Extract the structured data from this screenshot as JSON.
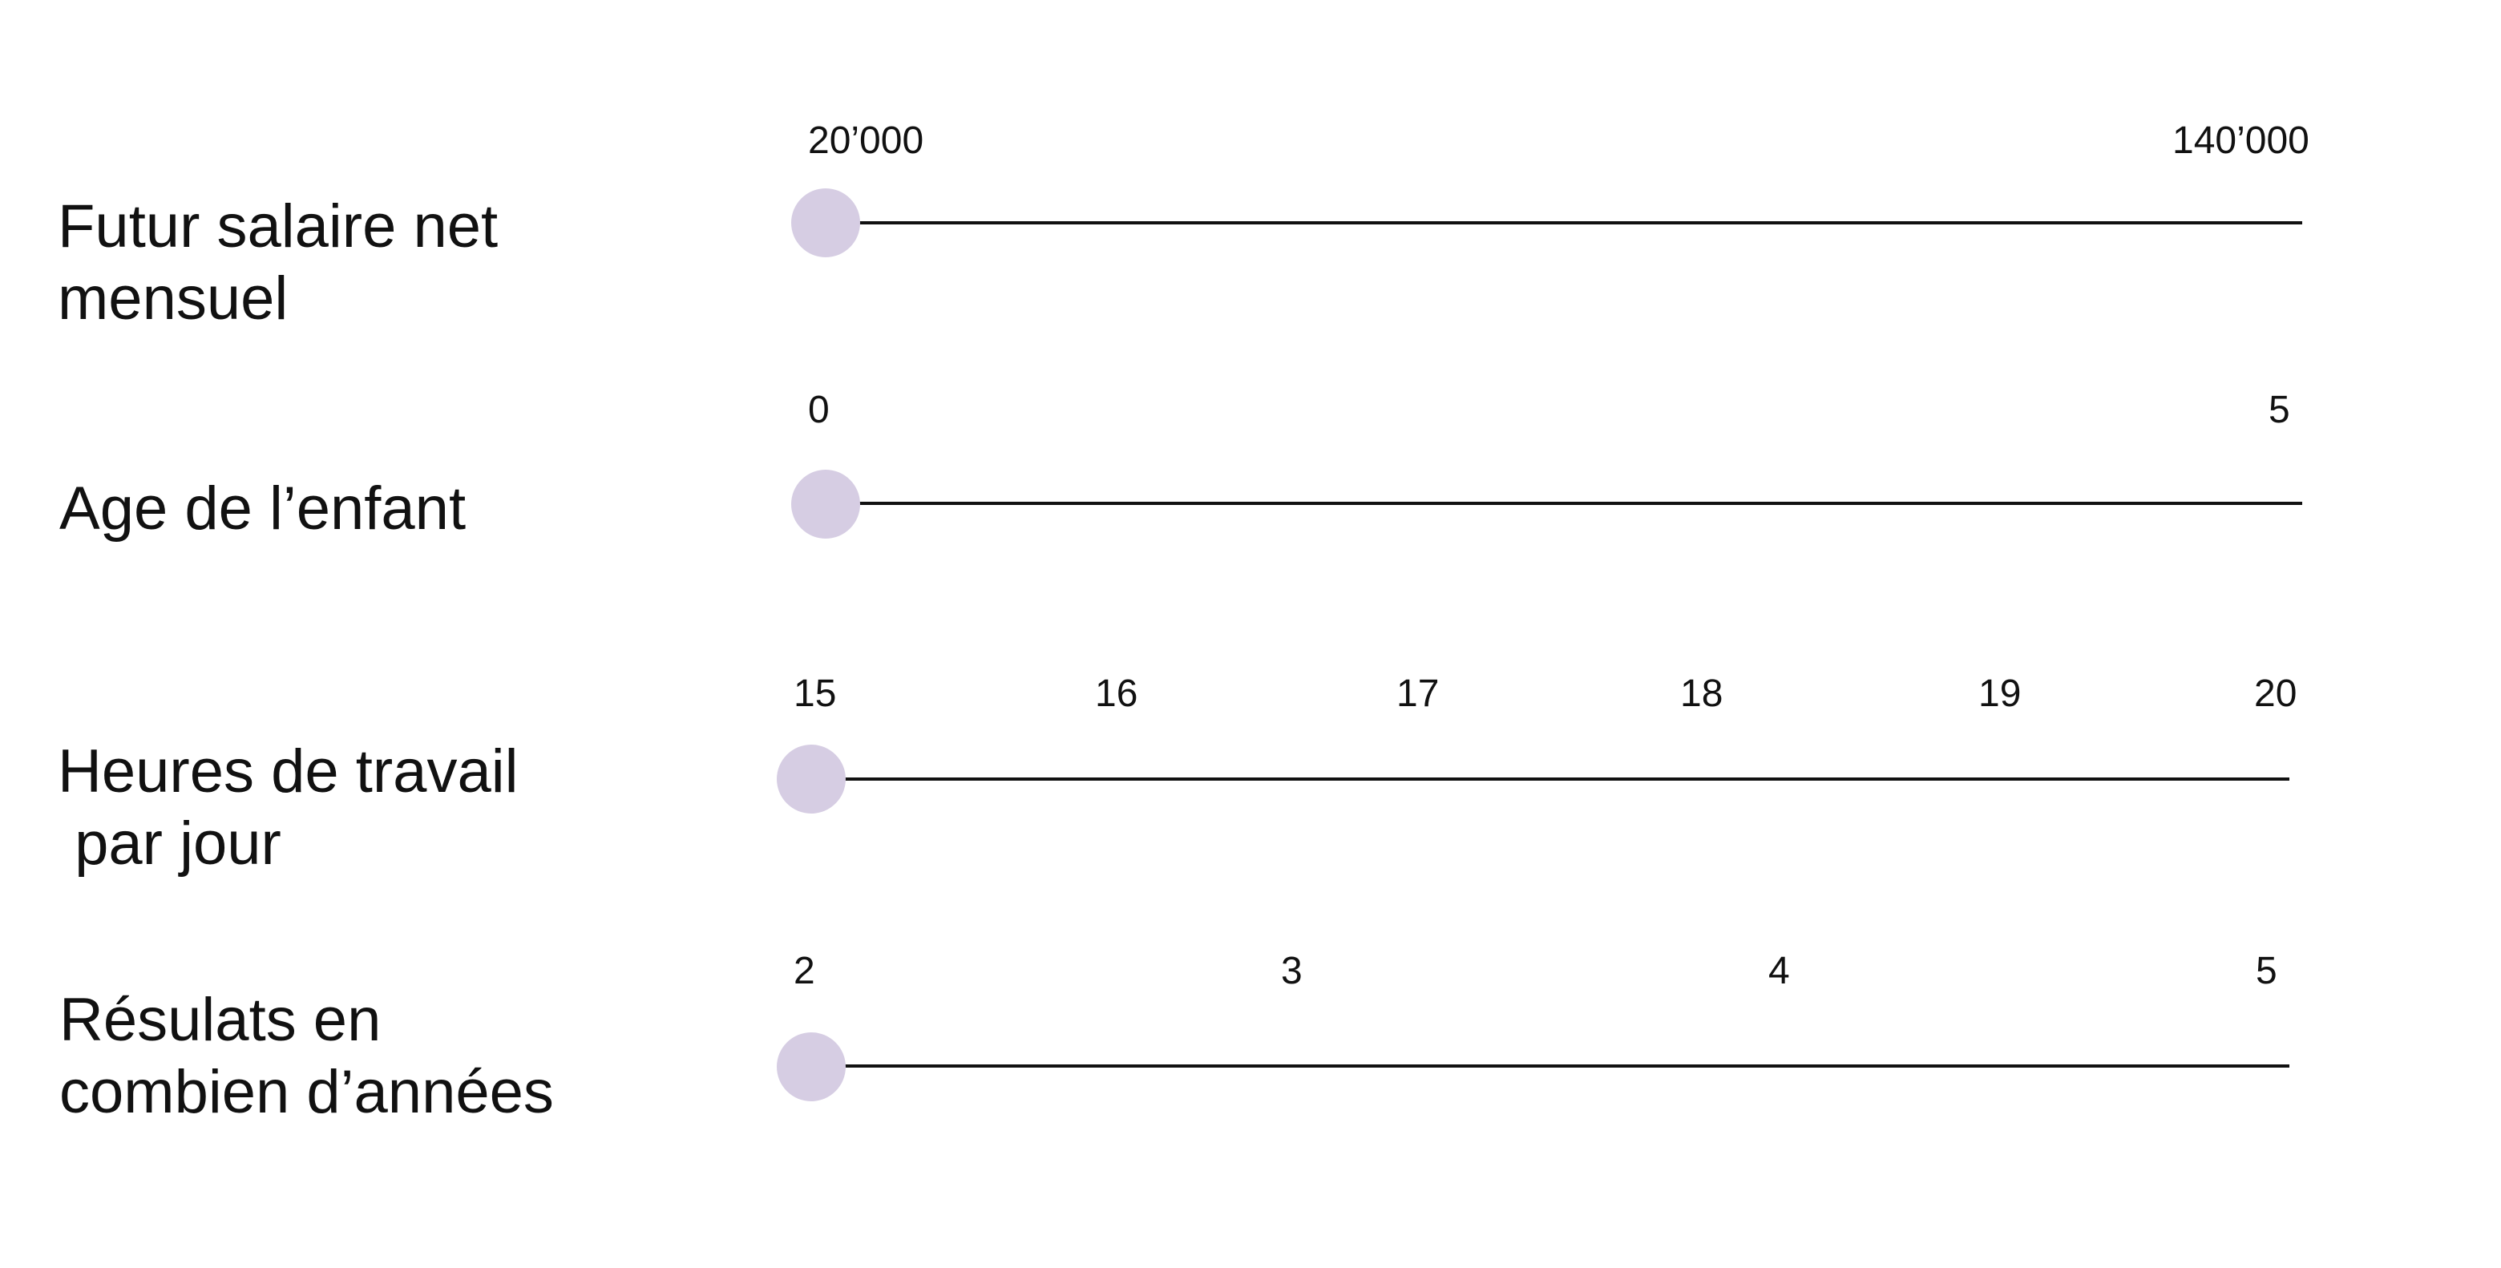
{
  "theme": {
    "thumb_color": "#d6cde3",
    "track_color": "#111111",
    "text_color": "#111111"
  },
  "sliders": [
    {
      "label": "Futur salaire net\nmensuel",
      "min_label": "20’000",
      "max_label": "140’000",
      "ticks": [
        "20’000",
        "140’000"
      ],
      "value": "20’000",
      "fraction": 0
    },
    {
      "label": "Age de l’enfant",
      "min_label": "0",
      "max_label": "5",
      "ticks": [
        "0",
        "5"
      ],
      "value": "0",
      "fraction": 0
    },
    {
      "label": "Heures de travail\n par jour",
      "min_label": "15",
      "max_label": "20",
      "ticks": [
        "15",
        "16",
        "17",
        "18",
        "19",
        "20"
      ],
      "value": "15",
      "fraction": 0
    },
    {
      "label": "Résulats en\ncombien d’années",
      "min_label": "2",
      "max_label": "5",
      "ticks": [
        "2",
        "3",
        "4",
        "5"
      ],
      "value": "2",
      "fraction": 0
    }
  ]
}
